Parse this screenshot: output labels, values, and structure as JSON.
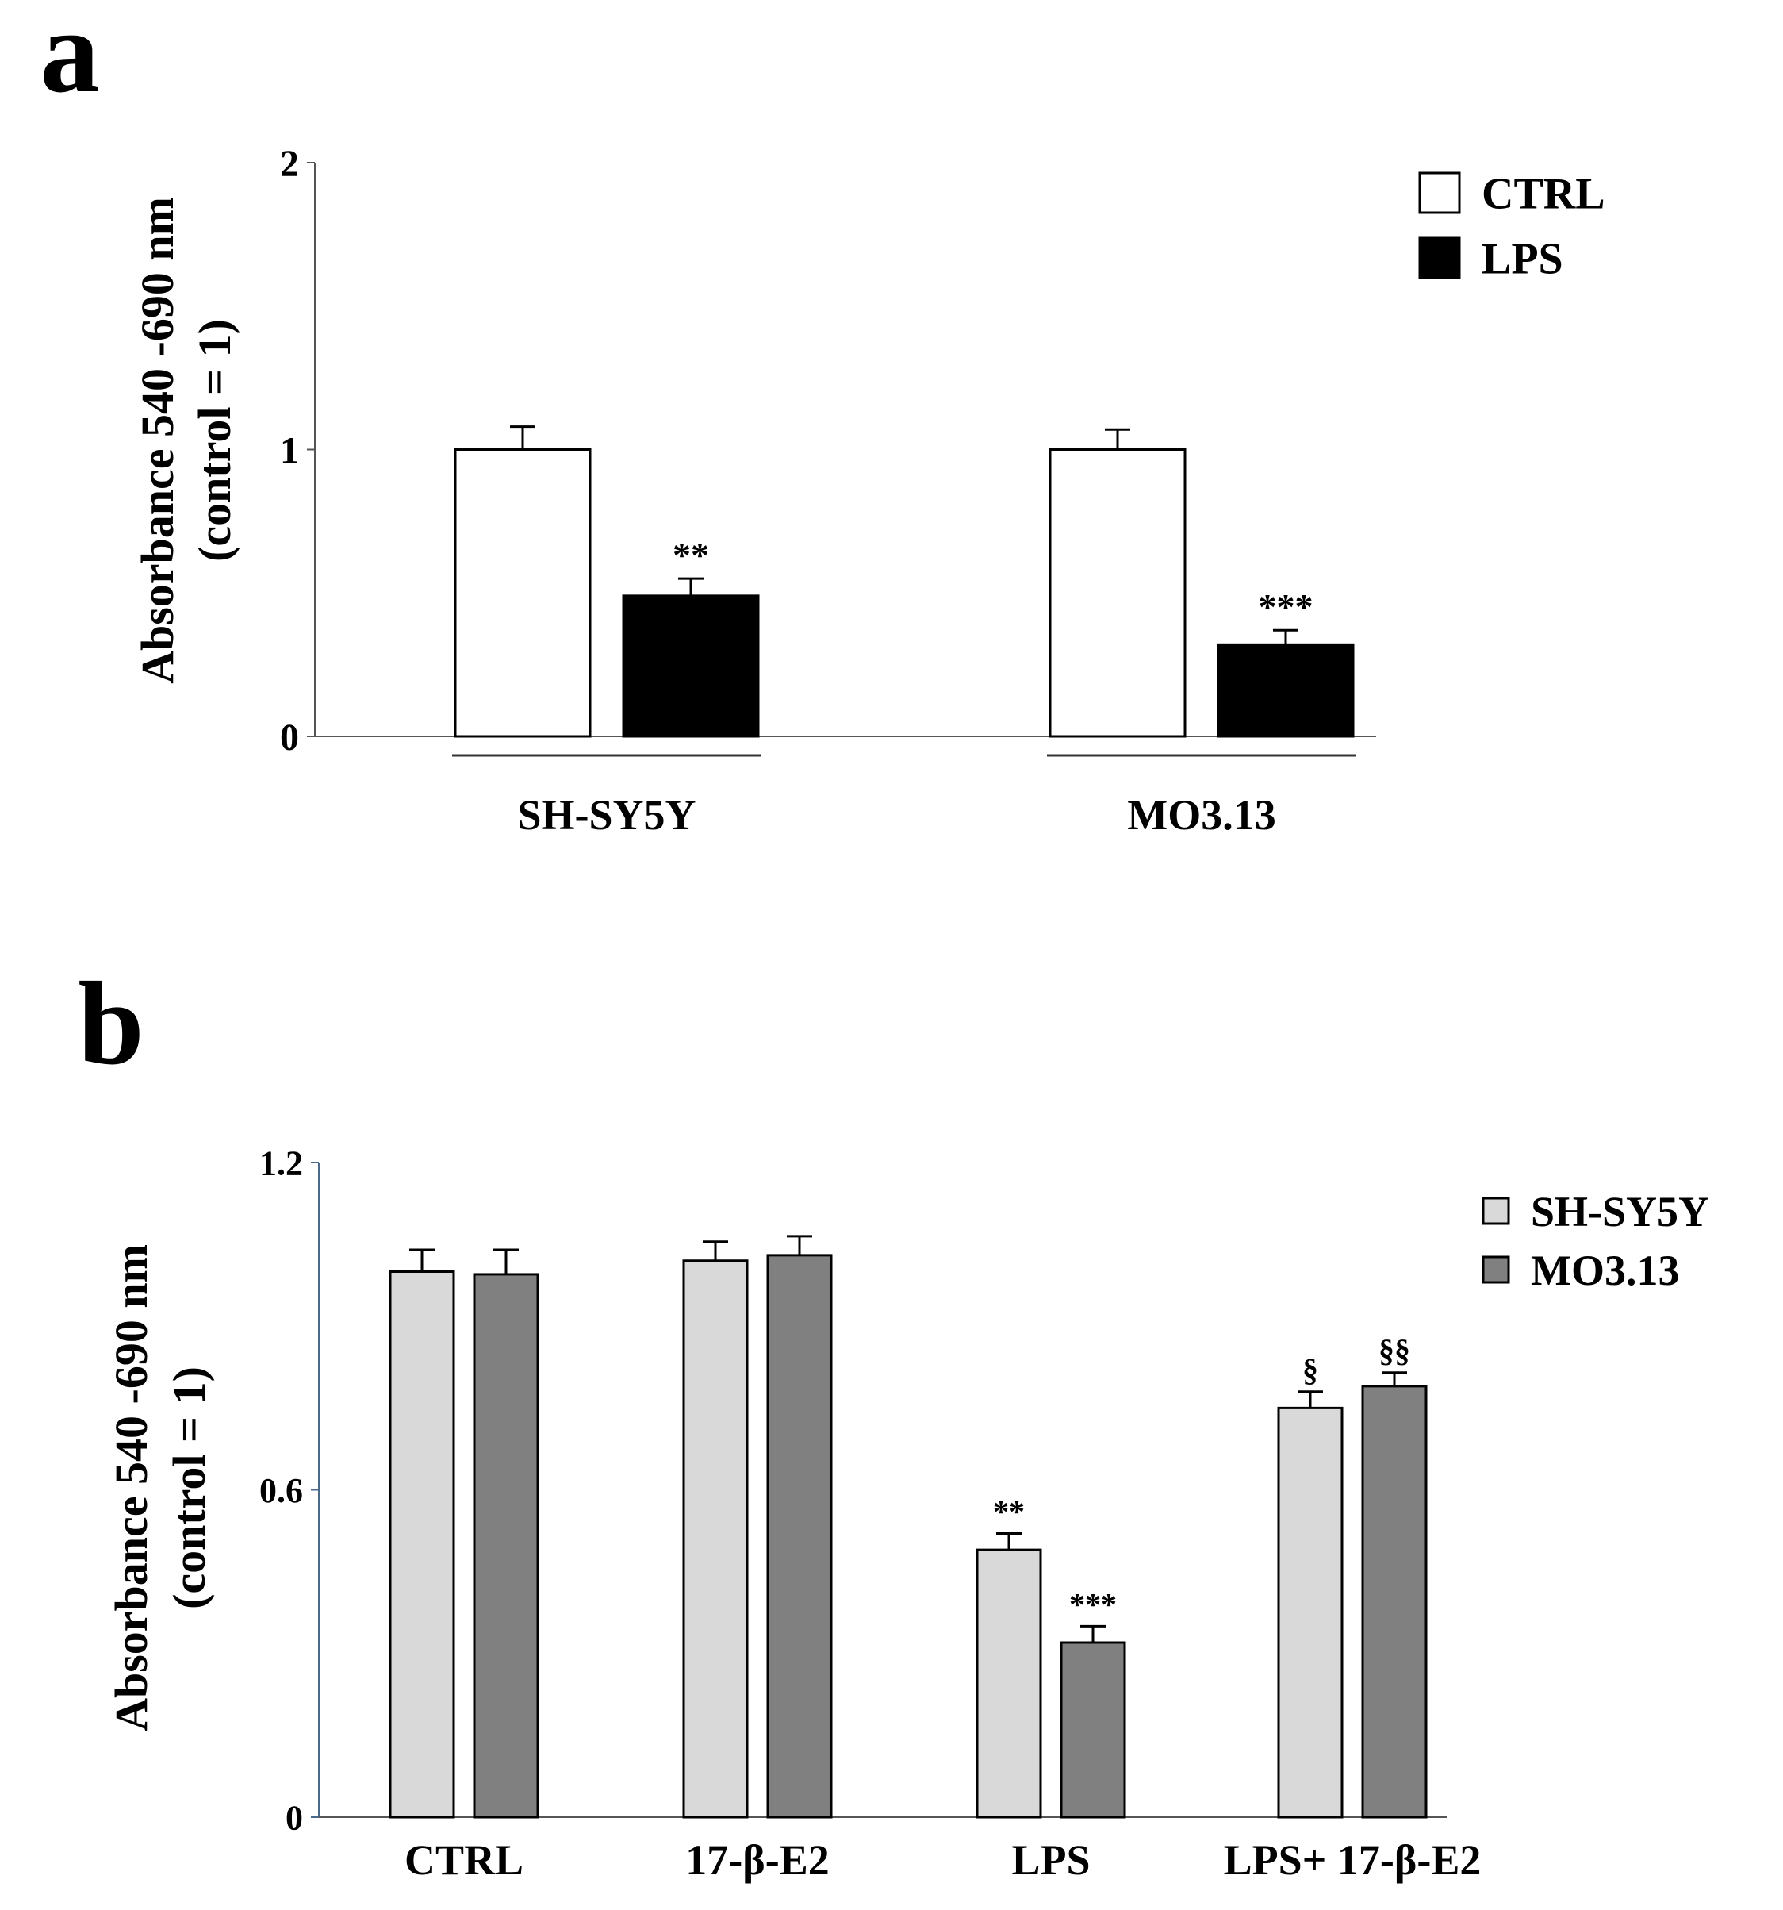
{
  "chart_data": [
    {
      "panel_label": "a",
      "type": "bar",
      "categories": [
        "SH-SY5Y",
        "MO3.13"
      ],
      "series": [
        {
          "name": "CTRL",
          "color": "#ffffff",
          "values": [
            1.0,
            1.0
          ],
          "errors": [
            0.08,
            0.07
          ],
          "annotations": [
            "",
            ""
          ]
        },
        {
          "name": "LPS",
          "color": "#000000",
          "values": [
            0.49,
            0.32
          ],
          "errors": [
            0.06,
            0.05
          ],
          "annotations": [
            "**",
            "***"
          ]
        }
      ],
      "ylabel": "Absorbance  540 -690 nm",
      "ylabel2": "(control = 1)",
      "xlabel": "",
      "ylim": [
        0,
        2
      ],
      "yticks": [
        0,
        1,
        2
      ],
      "ytick_labels": [
        "0",
        "1",
        "2"
      ],
      "legend_position": "top-right"
    },
    {
      "panel_label": "b",
      "type": "bar",
      "categories": [
        "CTRL",
        "17-β-E2",
        "LPS",
        "LPS+ 17-β-E2"
      ],
      "series": [
        {
          "name": "SH-SY5Y",
          "color": "#d9d9d9",
          "values": [
            1.0,
            1.02,
            0.49,
            0.75
          ],
          "errors": [
            0.04,
            0.035,
            0.03,
            0.03
          ],
          "annotations": [
            "",
            "",
            "**",
            "§"
          ]
        },
        {
          "name": "MO3.13",
          "color": "#808080",
          "values": [
            0.995,
            1.03,
            0.32,
            0.79
          ],
          "errors": [
            0.045,
            0.035,
            0.03,
            0.025
          ],
          "annotations": [
            "",
            "",
            "***",
            "§§"
          ]
        }
      ],
      "ylabel": "Absorbance  540 -690 nm",
      "ylabel2": "(control = 1)",
      "xlabel": "",
      "ylim": [
        0,
        1.2
      ],
      "yticks": [
        0,
        0.6,
        1.2
      ],
      "ytick_labels": [
        "0",
        "0.6",
        "1.2"
      ],
      "legend_position": "top-right"
    }
  ]
}
